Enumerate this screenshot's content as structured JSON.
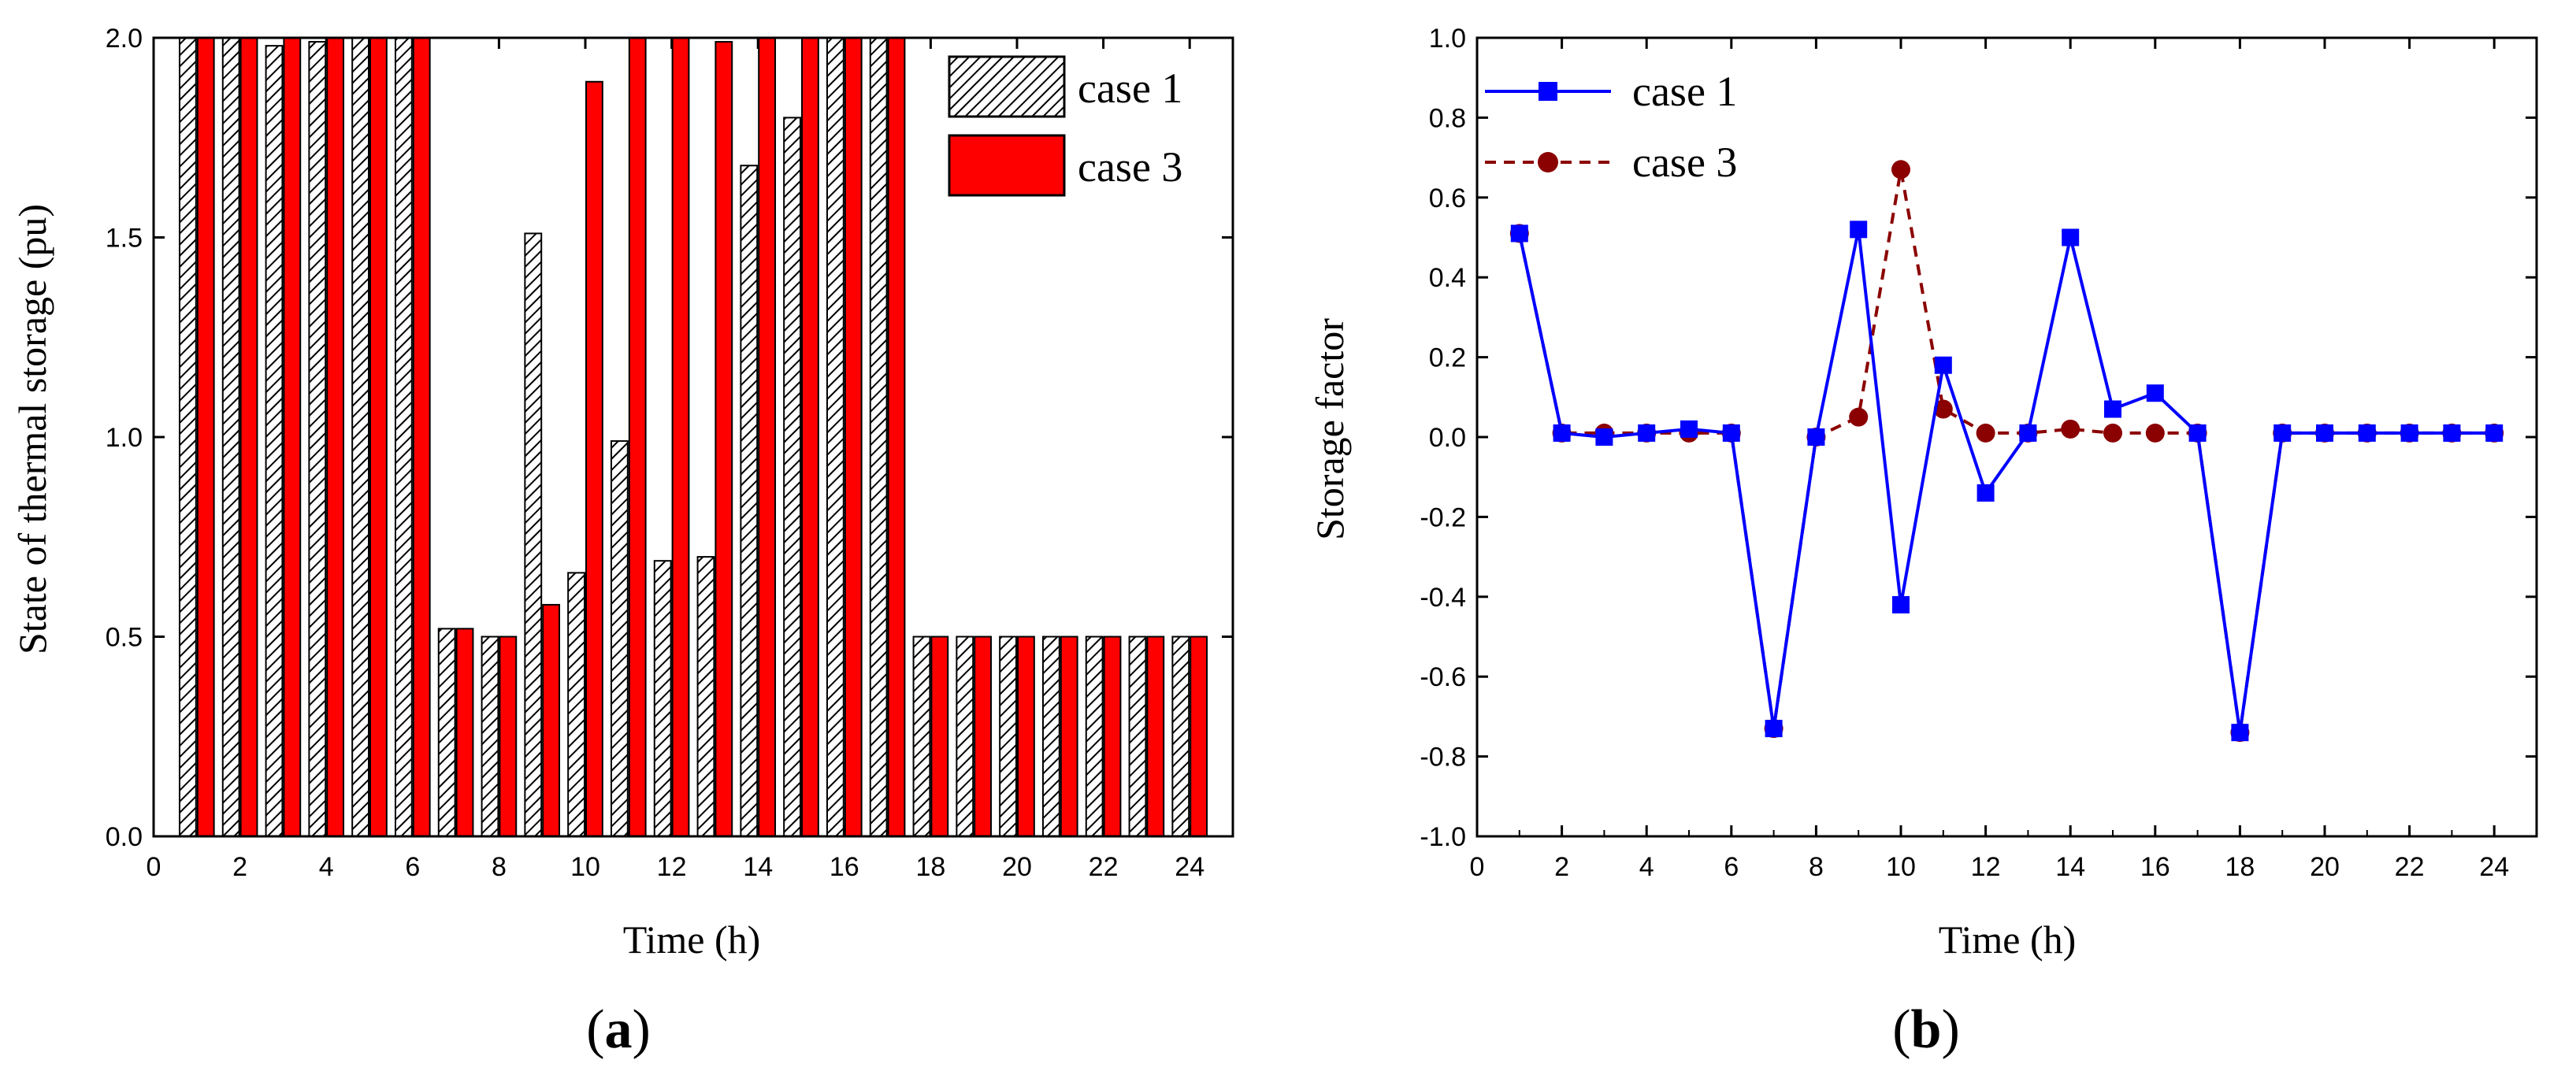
{
  "chart_data": [
    {
      "type": "bar",
      "panel_label": "a",
      "xlabel": "Time (h)",
      "ylabel": "State of thermal storage (pu)",
      "xlim": [
        0,
        25
      ],
      "ylim": [
        0.0,
        2.0
      ],
      "xticks": [
        "0",
        "2",
        "4",
        "6",
        "8",
        "10",
        "12",
        "14",
        "16",
        "18",
        "20",
        "22",
        "24"
      ],
      "yticks": [
        "0.0",
        "0.5",
        "1.0",
        "1.5",
        "2.0"
      ],
      "legend_position": "top-right",
      "x": [
        1,
        2,
        3,
        4,
        5,
        6,
        7,
        8,
        9,
        10,
        11,
        12,
        13,
        14,
        15,
        16,
        17,
        18,
        19,
        20,
        21,
        22,
        23,
        24
      ],
      "series": [
        {
          "name": "case 1",
          "style": "hatched",
          "color": "#000000",
          "values": [
            2.0,
            2.0,
            1.98,
            1.99,
            2.0,
            2.0,
            0.52,
            0.5,
            1.51,
            0.66,
            0.99,
            0.69,
            0.7,
            1.68,
            1.8,
            2.0,
            2.0,
            0.5,
            0.5,
            0.5,
            0.5,
            0.5,
            0.5,
            0.5
          ]
        },
        {
          "name": "case 3",
          "style": "solid",
          "color": "#ff0000",
          "values": [
            2.0,
            2.0,
            2.0,
            2.0,
            2.0,
            2.0,
            0.52,
            0.5,
            0.58,
            1.89,
            2.0,
            2.0,
            1.99,
            2.0,
            2.0,
            2.0,
            2.0,
            0.5,
            0.5,
            0.5,
            0.5,
            0.5,
            0.5,
            0.5
          ]
        }
      ]
    },
    {
      "type": "line",
      "panel_label": "b",
      "xlabel": "Time (h)",
      "ylabel": "Storage factor",
      "xlim": [
        0,
        25
      ],
      "ylim": [
        -1.0,
        1.0
      ],
      "xticks": [
        "0",
        "2",
        "4",
        "6",
        "8",
        "10",
        "12",
        "14",
        "16",
        "18",
        "20",
        "22",
        "24"
      ],
      "yticks": [
        "-1.0",
        "-0.8",
        "-0.6",
        "-0.4",
        "-0.2",
        "0.0",
        "0.2",
        "0.4",
        "0.6",
        "0.8",
        "1.0"
      ],
      "legend_position": "top-left",
      "x": [
        1,
        2,
        3,
        4,
        5,
        6,
        7,
        8,
        9,
        10,
        11,
        12,
        13,
        14,
        15,
        16,
        17,
        18,
        19,
        20,
        21,
        22,
        23,
        24
      ],
      "series": [
        {
          "name": "case 1",
          "marker": "square",
          "line": "solid",
          "color": "#0000ff",
          "values": [
            0.51,
            0.01,
            0.0,
            0.01,
            0.02,
            0.01,
            -0.73,
            0.0,
            0.52,
            -0.42,
            0.18,
            -0.14,
            0.01,
            0.5,
            0.07,
            0.11,
            0.01,
            -0.74,
            0.01,
            0.01,
            0.01,
            0.01,
            0.01,
            0.01
          ]
        },
        {
          "name": "case 3",
          "marker": "circle",
          "line": "dashed",
          "color": "#8b0000",
          "values": [
            0.51,
            0.01,
            0.01,
            0.01,
            0.01,
            0.01,
            -0.73,
            0.0,
            0.05,
            0.67,
            0.07,
            0.01,
            0.01,
            0.02,
            0.01,
            0.01,
            0.01,
            -0.74,
            0.01,
            0.01,
            0.01,
            0.01,
            0.01,
            0.01
          ]
        }
      ]
    }
  ]
}
